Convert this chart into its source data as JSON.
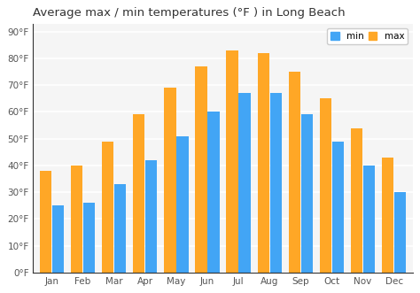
{
  "months": [
    "Jan",
    "Feb",
    "Mar",
    "Apr",
    "May",
    "Jun",
    "Jul",
    "Aug",
    "Sep",
    "Oct",
    "Nov",
    "Dec"
  ],
  "min_temps": [
    25,
    26,
    33,
    42,
    51,
    60,
    67,
    67,
    59,
    49,
    40,
    30
  ],
  "max_temps": [
    38,
    40,
    49,
    59,
    69,
    77,
    83,
    82,
    75,
    65,
    54,
    43
  ],
  "min_color": "#42a5f5",
  "max_color": "#ffa726",
  "title": "Average max / min temperatures (°F ) in Long Beach",
  "ylabel_ticks": [
    0,
    10,
    20,
    30,
    40,
    50,
    60,
    70,
    80,
    90
  ],
  "ylim": [
    0,
    93
  ],
  "background_color": "#ffffff",
  "plot_bg_color": "#f5f5f5",
  "grid_color": "#ffffff",
  "legend_min": "min",
  "legend_max": "max",
  "title_fontsize": 9.5,
  "tick_fontsize": 7.5,
  "bar_width": 0.38,
  "bar_gap": 0.02
}
